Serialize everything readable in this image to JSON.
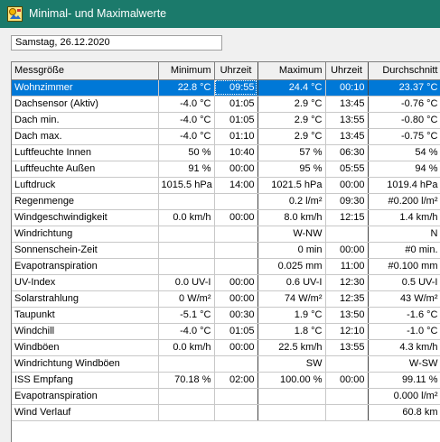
{
  "window": {
    "title": "Minimal- und Maximalwerte",
    "icon": "app-icon",
    "colors": {
      "titlebar": "#1b7a6b",
      "selection": "#0078d7"
    }
  },
  "date": {
    "value": "Samstag, 26.12.2020"
  },
  "table": {
    "headers": [
      "Messgröße",
      "Minimum",
      "Uhrzeit",
      "Maximum",
      "Uhrzeit",
      "Durchschnitt"
    ],
    "selected_row": 0,
    "rows": [
      [
        "Wohnzimmer",
        "22.8 °C",
        "09:55",
        "24.4 °C",
        "00:10",
        "23.37 °C"
      ],
      [
        "Dachsensor (Aktiv)",
        "-4.0 °C",
        "01:05",
        "2.9 °C",
        "13:45",
        "-0.76 °C"
      ],
      [
        "Dach min.",
        "-4.0 °C",
        "01:05",
        "2.9 °C",
        "13:55",
        "-0.80 °C"
      ],
      [
        "Dach max.",
        "-4.0 °C",
        "01:10",
        "2.9 °C",
        "13:45",
        "-0.75 °C"
      ],
      [
        "Luftfeuchte Innen",
        "50 %",
        "10:40",
        "57 %",
        "06:30",
        "54 %"
      ],
      [
        "Luftfeuchte Außen",
        "91 %",
        "00:00",
        "95 %",
        "05:55",
        "94 %"
      ],
      [
        "Luftdruck",
        "1015.5 hPa",
        "14:00",
        "1021.5 hPa",
        "00:00",
        "1019.4 hPa"
      ],
      [
        "Regenmenge",
        "",
        "",
        "0.2 l/m²",
        "09:30",
        "#0.200 l/m²"
      ],
      [
        "Windgeschwindigkeit",
        "0.0 km/h",
        "00:00",
        "8.0 km/h",
        "12:15",
        "1.4 km/h"
      ],
      [
        "Windrichtung",
        "",
        "",
        "W-NW",
        "",
        "N"
      ],
      [
        "Sonnenschein-Zeit",
        "",
        "",
        "0 min",
        "00:00",
        "#0 min."
      ],
      [
        "Evapotranspiration",
        "",
        "",
        "0.025 mm",
        "11:00",
        "#0.100 mm"
      ],
      [
        "UV-Index",
        "0.0 UV-I",
        "00:00",
        "0.6 UV-I",
        "12:30",
        "0.5 UV-I"
      ],
      [
        "Solarstrahlung",
        "0 W/m²",
        "00:00",
        "74 W/m²",
        "12:35",
        "43 W/m²"
      ],
      [
        "Taupunkt",
        "-5.1 °C",
        "00:30",
        "1.9 °C",
        "13:50",
        "-1.6 °C"
      ],
      [
        "Windchill",
        "-4.0 °C",
        "01:05",
        "1.8 °C",
        "12:10",
        "-1.0 °C"
      ],
      [
        "Windböen",
        "0.0 km/h",
        "00:00",
        "22.5 km/h",
        "13:55",
        "4.3 km/h"
      ],
      [
        "Windrichtung Windböen",
        "",
        "",
        "SW",
        "",
        "W-SW"
      ],
      [
        "ISS Empfang",
        "70.18 %",
        "02:00",
        "100.00 %",
        "00:00",
        "99.11 %"
      ],
      [
        "Evapotranspiration",
        "",
        "",
        "",
        "",
        "0.000 l/m²"
      ],
      [
        "Wind Verlauf",
        "",
        "",
        "",
        "",
        "60.8 km"
      ]
    ]
  }
}
